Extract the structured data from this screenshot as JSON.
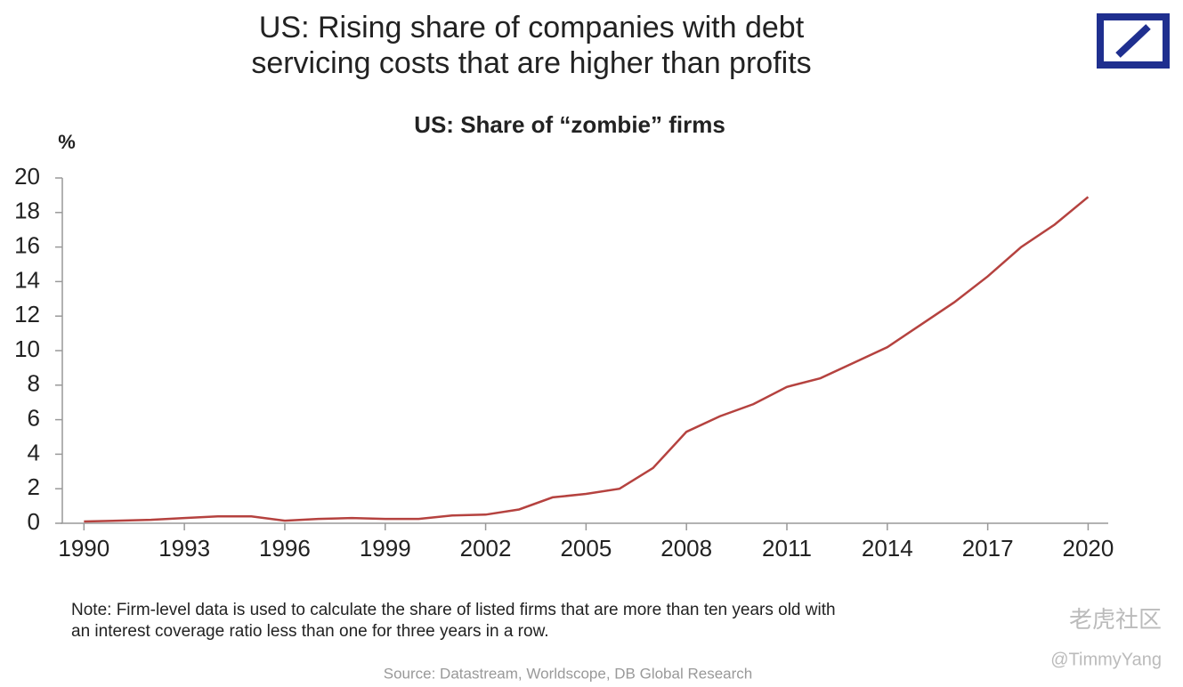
{
  "chart_data": {
    "type": "line",
    "title": [
      "US: Rising share of companies with debt",
      "servicing costs that are higher than profits"
    ],
    "subtitle": "US: Share of “zombie” firms",
    "y_label": "%",
    "x": [
      1990,
      1991,
      1992,
      1993,
      1994,
      1995,
      1996,
      1997,
      1998,
      1999,
      2000,
      2001,
      2002,
      2003,
      2004,
      2005,
      2006,
      2007,
      2008,
      2009,
      2010,
      2011,
      2012,
      2013,
      2014,
      2015,
      2016,
      2017,
      2018,
      2019,
      2020
    ],
    "series": [
      {
        "name": "Share of zombie firms",
        "color": "#b5423f",
        "values": [
          0.1,
          0.15,
          0.2,
          0.3,
          0.4,
          0.4,
          0.15,
          0.25,
          0.3,
          0.25,
          0.25,
          0.45,
          0.5,
          0.8,
          1.5,
          1.7,
          2.0,
          3.2,
          5.3,
          6.2,
          6.9,
          7.9,
          8.4,
          9.3,
          10.2,
          11.5,
          12.8,
          14.3,
          16.0,
          17.3,
          18.9
        ]
      }
    ],
    "xlim": [
      1989.3,
      2020.6
    ],
    "xticks": [
      1990,
      1993,
      1996,
      1999,
      2002,
      2005,
      2008,
      2011,
      2014,
      2017,
      2020
    ],
    "ylim": [
      0,
      20
    ],
    "yticks": [
      0,
      2,
      4,
      6,
      8,
      10,
      12,
      14,
      16,
      18,
      20
    ],
    "grid": false,
    "note": [
      "Note: Firm-level data is used to calculate the share of listed firms that are more than ten years old with",
      "an interest coverage ratio less than one for three years in a row."
    ],
    "source": "Source: Datastream, Worldscope, DB Global Research",
    "watermark": [
      "老虎社区",
      "@TimmyYang"
    ]
  }
}
